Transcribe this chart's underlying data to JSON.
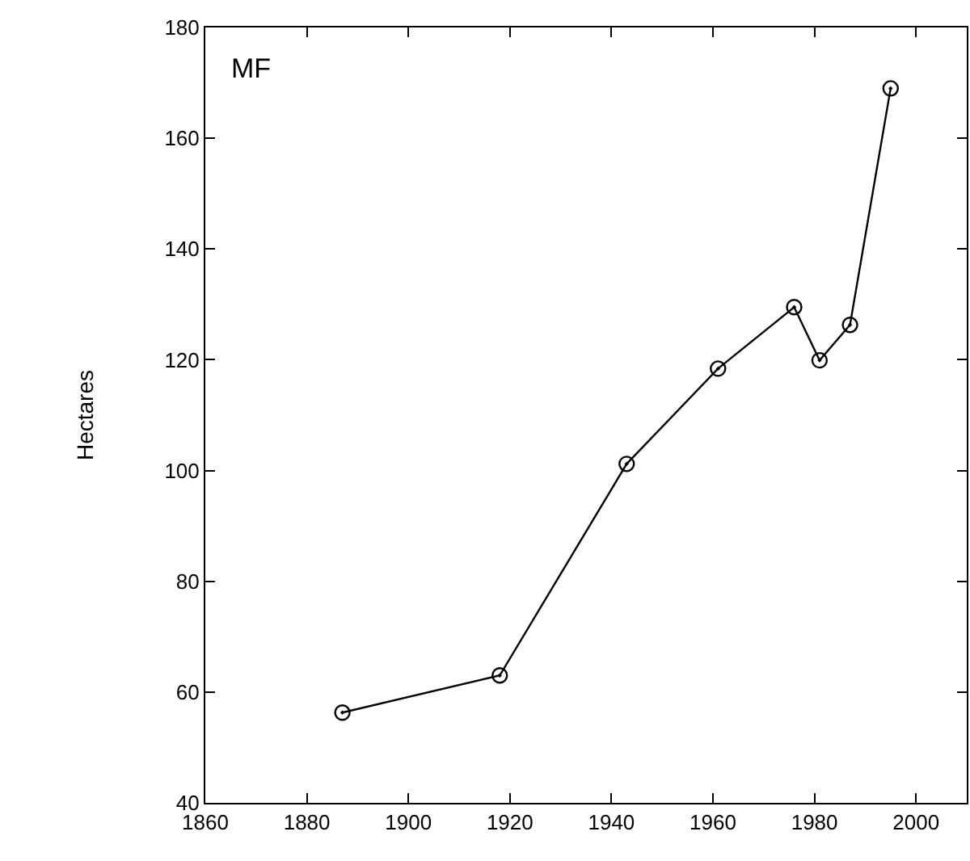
{
  "chart_data": {
    "type": "line",
    "ylabel": "Hectares",
    "annotations": [
      "MF"
    ],
    "x": [
      1887,
      1918,
      1943,
      1961,
      1976,
      1981,
      1987,
      1995
    ],
    "series": [
      {
        "color": "#000000",
        "values": [
          56.3,
          63.0,
          101.2,
          118.4,
          129.5,
          119.9,
          126.3,
          169.0
        ]
      }
    ],
    "xlim": [
      1860,
      2010
    ],
    "xticks": [
      1860,
      1880,
      1900,
      1920,
      1940,
      1960,
      1980,
      2000
    ],
    "ylim": [
      40,
      180
    ],
    "yticks": [
      40,
      60,
      80,
      100,
      120,
      140,
      160,
      180
    ],
    "marker": "circle",
    "line_style": "solid"
  }
}
